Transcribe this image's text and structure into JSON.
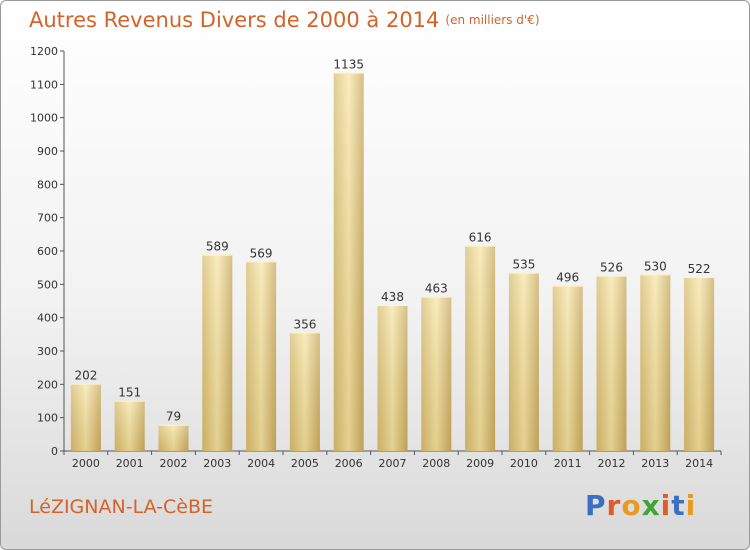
{
  "title": "Autres Revenus Divers de 2000 à 2014",
  "unit": "(en milliers d'€)",
  "town": "LéZIGNAN-LA-CèBE",
  "logo": {
    "letters": [
      {
        "char": "P",
        "color": "#3a6fc4"
      },
      {
        "char": "r",
        "color": "#e05a2a"
      },
      {
        "char": "o",
        "color": "#e79a1f"
      },
      {
        "char": "x",
        "color": "#3fa535"
      },
      {
        "char": "i",
        "color": "#e05a2a"
      },
      {
        "char": "t",
        "color": "#3a6fc4"
      },
      {
        "char": "i",
        "color": "#e79a1f"
      }
    ]
  },
  "colors": {
    "accent": "#d4632a",
    "bar_light": "#f6e3a3",
    "bar_dark": "#c4a55c",
    "text": "#333333"
  },
  "chart_data": {
    "type": "bar",
    "title": "Autres Revenus Divers de 2000 à 2014",
    "subtitle": "(en milliers d'€)",
    "xlabel": "",
    "ylabel": "",
    "ylim": [
      0,
      1200
    ],
    "yticks": [
      0,
      100,
      200,
      300,
      400,
      500,
      600,
      700,
      800,
      900,
      1000,
      1100,
      1200
    ],
    "grid": false,
    "legend": "none",
    "categories": [
      "2000",
      "2001",
      "2002",
      "2003",
      "2004",
      "2005",
      "2006",
      "2007",
      "2008",
      "2009",
      "2010",
      "2011",
      "2012",
      "2013",
      "2014"
    ],
    "values": [
      202,
      151,
      79,
      589,
      569,
      356,
      1135,
      438,
      463,
      616,
      535,
      496,
      526,
      530,
      522
    ]
  }
}
